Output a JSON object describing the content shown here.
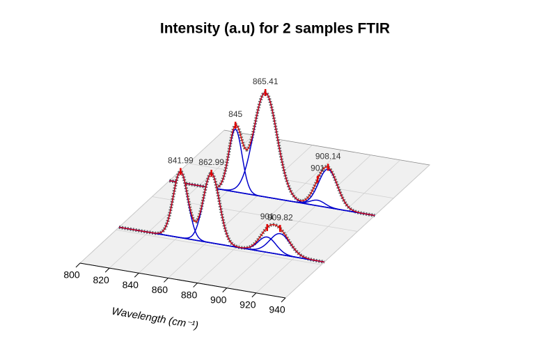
{
  "chart_data": {
    "type": "waterfall3d",
    "title": "Intensity (a.u) for 2 samples FTIR",
    "x_label": "Wavelength (cm⁻¹)",
    "xlim": [
      800,
      940
    ],
    "xticks": [
      800,
      820,
      840,
      860,
      880,
      900,
      920,
      940
    ],
    "component_color": "#0000cc",
    "fit_color": "#e00000",
    "data_color": "#555555",
    "series": [
      {
        "peaks": [
          841.99,
          862.99,
          901,
          909.82
        ],
        "values": [
          0.95,
          1.0,
          0.22,
          0.3
        ],
        "widths": [
          5,
          5.5,
          6,
          7
        ]
      },
      {
        "peaks": [
          845,
          865.41,
          901,
          908.14
        ],
        "values": [
          0.9,
          1.5,
          0.08,
          0.55
        ],
        "widths": [
          4.5,
          8,
          5,
          6.5
        ]
      }
    ]
  }
}
